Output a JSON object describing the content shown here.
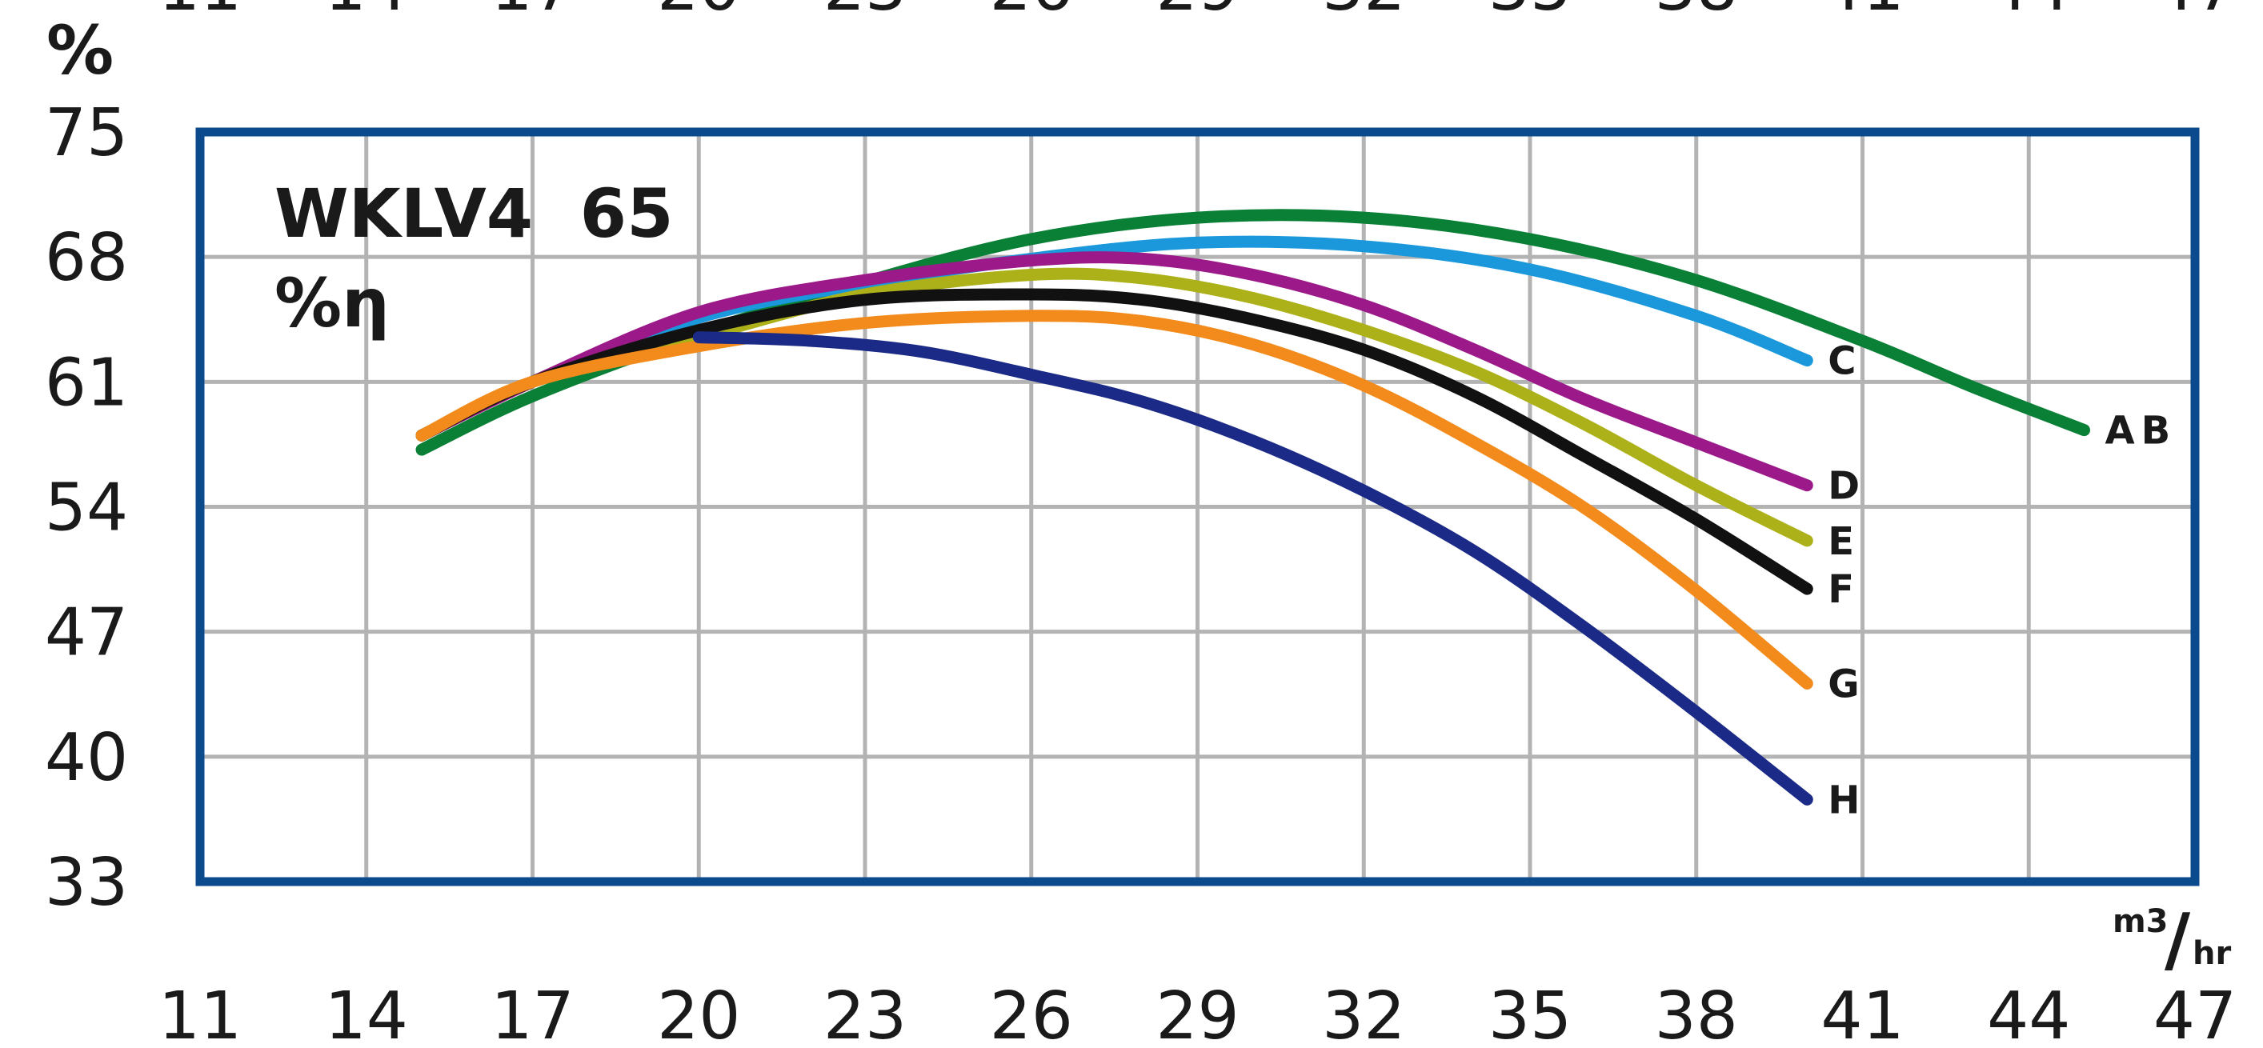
{
  "chart_data": {
    "type": "line",
    "title": "WKLV4  65",
    "subtitle": "%η",
    "ylabel": "%",
    "xlabel_num": "m3",
    "xlabel_den": "hr",
    "xlim": [
      11,
      47
    ],
    "ylim": [
      33,
      75
    ],
    "x_ticks": [
      "11",
      "14",
      "17",
      "20",
      "23",
      "26",
      "29",
      "32",
      "35",
      "38",
      "41",
      "44",
      "47"
    ],
    "y_ticks": [
      "75",
      "68",
      "61",
      "54",
      "47",
      "40",
      "33"
    ],
    "grid": true,
    "frame_color": "#0b4a8c",
    "grid_color": "#b3b3b3",
    "series": [
      {
        "name": "AB",
        "color": "#0a8036",
        "x": [
          15,
          17,
          20,
          23,
          26,
          29,
          32,
          35,
          38,
          41,
          43,
          45
        ],
        "y": [
          57.2,
          60.2,
          63.7,
          66.6,
          69.0,
          70.2,
          70.2,
          69.0,
          66.7,
          63.3,
          60.7,
          58.3
        ]
      },
      {
        "name": "C",
        "color": "#1a98db",
        "x": [
          15,
          17,
          20,
          23,
          26,
          29,
          32,
          35,
          38,
          40
        ],
        "y": [
          58.0,
          61.0,
          64.6,
          66.5,
          67.9,
          68.8,
          68.6,
          67.3,
          64.7,
          62.2
        ]
      },
      {
        "name": "D",
        "color": "#9b1989",
        "x": [
          15,
          17,
          20,
          23,
          26,
          28,
          30,
          32,
          34,
          36,
          38,
          40
        ],
        "y": [
          58.0,
          61.0,
          64.9,
          66.7,
          67.8,
          67.9,
          67.0,
          65.3,
          62.8,
          60.0,
          57.6,
          55.2
        ]
      },
      {
        "name": "E",
        "color": "#adb119",
        "x": [
          15,
          17,
          20,
          23,
          26,
          28,
          30,
          32,
          34,
          36,
          38,
          40
        ],
        "y": [
          58.0,
          61.0,
          63.5,
          65.9,
          67.0,
          66.8,
          65.7,
          63.9,
          61.6,
          58.6,
          55.2,
          52.1
        ]
      },
      {
        "name": "F",
        "color": "#111111",
        "x": [
          15,
          17,
          20,
          23,
          26,
          28,
          30,
          32,
          34,
          36,
          38,
          40
        ],
        "y": [
          58.0,
          61.0,
          63.9,
          65.6,
          65.9,
          65.6,
          64.5,
          62.8,
          60.2,
          56.8,
          53.3,
          49.4
        ]
      },
      {
        "name": "G",
        "color": "#f28b1c",
        "x": [
          15,
          17,
          20,
          23,
          26,
          28,
          30,
          32,
          34,
          36,
          38,
          40
        ],
        "y": [
          58.0,
          61.0,
          63.0,
          64.3,
          64.7,
          64.4,
          63.1,
          60.8,
          57.6,
          53.9,
          49.3,
          44.1
        ]
      },
      {
        "name": "H",
        "color": "#1b2a86",
        "x": [
          20,
          22,
          24,
          26,
          28,
          30,
          32,
          34,
          36,
          38,
          40
        ],
        "y": [
          63.5,
          63.3,
          62.7,
          61.4,
          59.9,
          57.7,
          54.9,
          51.5,
          47.2,
          42.5,
          37.6
        ]
      }
    ]
  }
}
